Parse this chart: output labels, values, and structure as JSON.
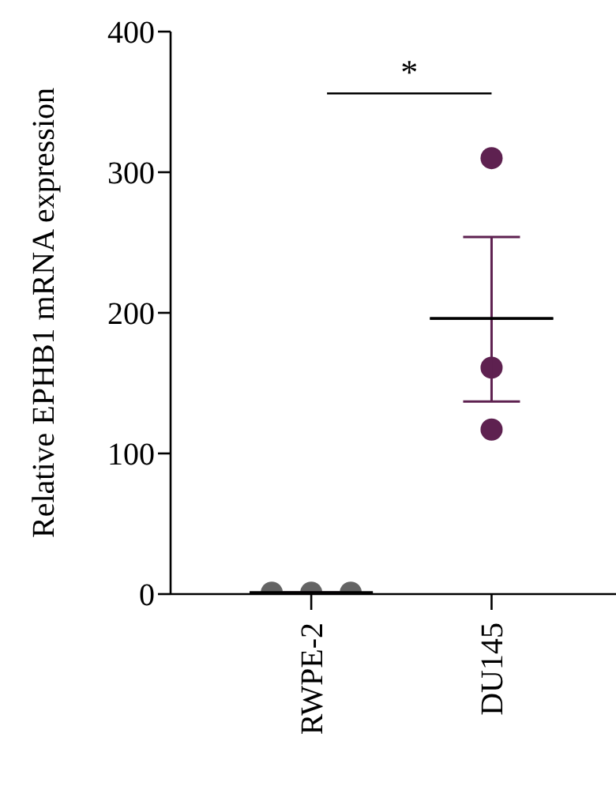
{
  "chart_data": {
    "type": "scatter",
    "ylabel": "Relative EPHB1 mRNA expression",
    "categories": [
      "RWPE-2",
      "DU145"
    ],
    "series": [
      {
        "color": "#646464",
        "x": [
          "RWPE-2",
          "RWPE-2",
          "RWPE-2"
        ],
        "values": [
          1,
          1,
          1
        ],
        "marker": "circle"
      },
      {
        "color": "#5e2150",
        "x": [
          "DU145",
          "DU145",
          "DU145"
        ],
        "values": [
          310,
          161,
          117
        ],
        "marker": "circle"
      },
      {
        "type": "box",
        "color": "#000000",
        "boxes": [
          {
            "low": 1,
            "q1": 1,
            "median": 1,
            "q3": 1,
            "high": 1
          },
          {
            "low": 137,
            "q1": 196,
            "median": 196,
            "q3": 196,
            "high": 254
          }
        ]
      }
    ],
    "ylim": [
      0,
      400
    ],
    "yticks": [
      0,
      100,
      200,
      300,
      400
    ],
    "grid": false,
    "legend": false,
    "annotations": [
      "*"
    ]
  }
}
